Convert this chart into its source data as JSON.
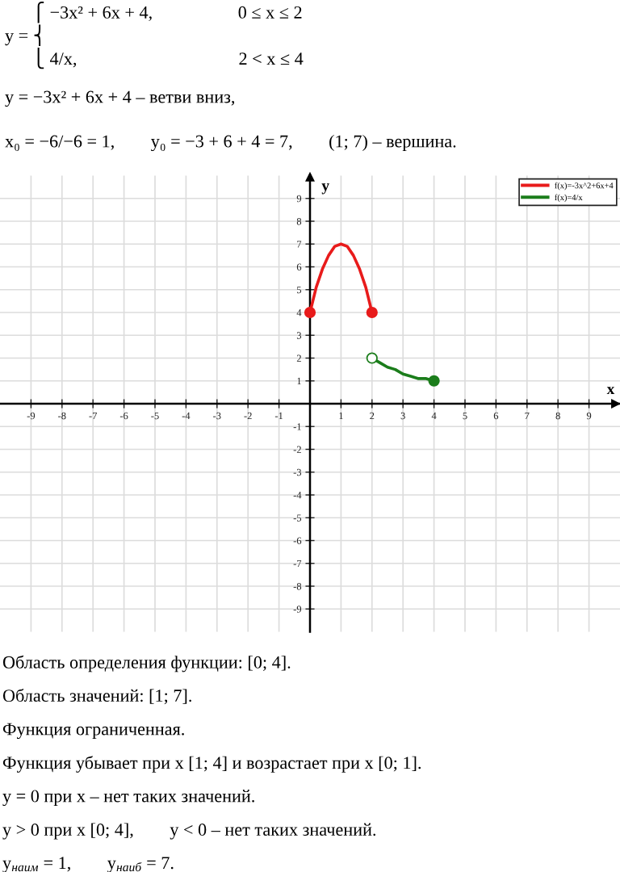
{
  "chart_data": {
    "type": "line",
    "title": "      ⎧ −3x² + 6x + 4,                   0 ≤ x ≤ 2\ny = ⎨\n      ⎩ 4/x,                                    2 < x ≤ 4",
    "subtitle": "y = −3x² + 6x + 4 – ветви вниз,\nx₀ = −6/−6 = 1,        y₀ = −3 + 6 + 4 = 7,        (1; 7) – вершина.",
    "xlabel": "x",
    "ylabel": "y",
    "xlim": [
      -10,
      10
    ],
    "ylim": [
      -10,
      10
    ],
    "xticks": [
      -9,
      -8,
      -7,
      -6,
      -5,
      -4,
      -3,
      -2,
      -1,
      1,
      2,
      3,
      4,
      5,
      6,
      7,
      8,
      9
    ],
    "yticks": [
      -9,
      -8,
      -7,
      -6,
      -5,
      -4,
      -3,
      -2,
      -1,
      1,
      2,
      3,
      4,
      5,
      6,
      7,
      8,
      9
    ],
    "grid": true,
    "legend": "top right",
    "series": [
      {
        "name": "f(x)=-3x^2+6x+4",
        "color": "#e81b1b",
        "x": [
          0,
          0.2,
          0.4,
          0.6,
          0.8,
          1,
          1.2,
          1.4,
          1.6,
          1.8,
          2
        ],
        "values": [
          4,
          5.1,
          5.9,
          6.5,
          6.9,
          7,
          6.9,
          6.5,
          5.9,
          5.1,
          4
        ]
      },
      {
        "name": "f(x)=4/x",
        "color": "#1b7d1b",
        "x": [
          2,
          2.25,
          2.5,
          2.75,
          3,
          3.25,
          3.5,
          3.75,
          4
        ],
        "values": [
          2,
          1.8,
          1.6,
          1.5,
          1.3,
          1.2,
          1.1,
          1.1,
          1
        ]
      },
      {
        "type": "scatter",
        "marker": "circle",
        "color": "#e81b1b",
        "x": [
          0,
          2
        ],
        "values": [
          4,
          4
        ]
      },
      {
        "type": "scatter",
        "marker": "circle",
        "color": "#1b7d1b",
        "x": [
          4
        ],
        "values": [
          1
        ]
      },
      {
        "type": "scatter",
        "marker": "circle",
        "color": "#1b7d1b",
        "colors": [
          "#ffffff"
        ],
        "x": [
          2
        ],
        "values": [
          2
        ]
      }
    ],
    "annotations": [
      "Область определения функции: [0; 4].",
      "Область значений: [1; 7].",
      "Функция ограниченная.",
      "Функция убывает при x [1; 4] и возрастает при x [0; 1].",
      "y = 0 при x – нет таких значений.",
      "y > 0 при x [0; 4],        y < 0 – нет таких значений.",
      "y$_{наим}$ = 1,        y$_{наиб}$ = 7."
    ]
  }
}
